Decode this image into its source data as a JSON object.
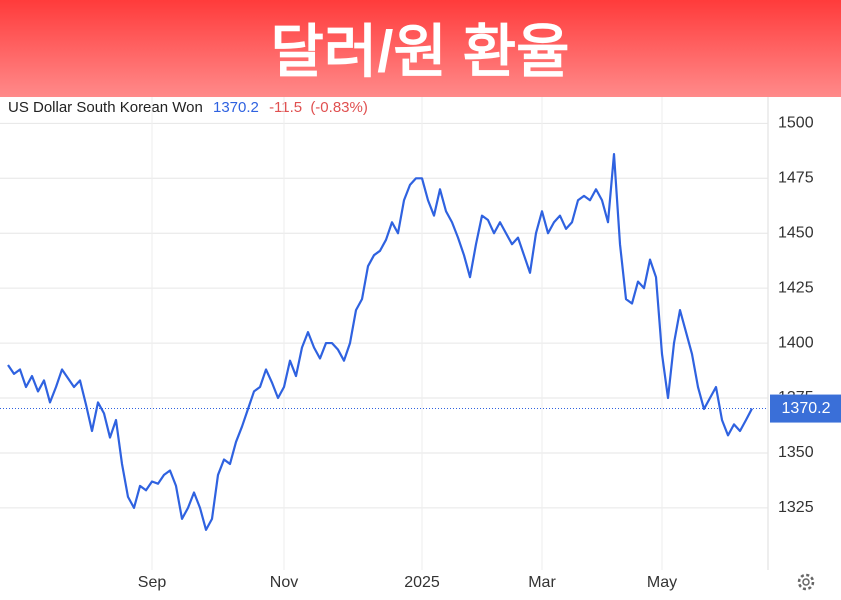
{
  "chart_data": {
    "type": "line",
    "title": "달러/원 환율",
    "subtitle": "US Dollar South Korean Won",
    "change": -11.5,
    "change_pct_label": "(-0.83%)",
    "categories": [
      null,
      null,
      null,
      null,
      null,
      null,
      null,
      null,
      null,
      null,
      null,
      null,
      null,
      null,
      null,
      null,
      null,
      null,
      null,
      null,
      null,
      null,
      null,
      null,
      "Sep",
      null,
      null,
      null,
      null,
      null,
      null,
      null,
      null,
      null,
      null,
      null,
      null,
      null,
      null,
      null,
      null,
      null,
      null,
      null,
      null,
      null,
      "Nov",
      null,
      null,
      null,
      null,
      null,
      null,
      null,
      null,
      null,
      null,
      null,
      null,
      null,
      null,
      null,
      null,
      null,
      null,
      null,
      null,
      null,
      null,
      "2025",
      null,
      null,
      null,
      null,
      null,
      null,
      null,
      null,
      null,
      null,
      null,
      null,
      null,
      null,
      null,
      null,
      null,
      null,
      null,
      "Mar",
      null,
      null,
      null,
      null,
      null,
      null,
      null,
      null,
      null,
      null,
      null,
      null,
      null,
      null,
      null,
      null,
      null,
      null,
      null,
      "May",
      null,
      null,
      null,
      null,
      null,
      null,
      null,
      null,
      null,
      null,
      null,
      null,
      null,
      null,
      null
    ],
    "series": [
      {
        "name": "US Dollar South Korean Won",
        "color": "#2f62e0",
        "values": [
          1390,
          1386,
          1388,
          1380,
          1385,
          1378,
          1383,
          1373,
          1380,
          1388,
          1384,
          1380,
          1383,
          1372,
          1360,
          1373,
          1368,
          1357,
          1365,
          1345,
          1330,
          1325,
          1335,
          1333,
          1337,
          1336,
          1340,
          1342,
          1335,
          1320,
          1325,
          1332,
          1325,
          1315,
          1320,
          1340,
          1347,
          1345,
          1355,
          1362,
          1370,
          1378,
          1380,
          1388,
          1382,
          1375,
          1380,
          1392,
          1385,
          1398,
          1405,
          1398,
          1393,
          1400,
          1400,
          1397,
          1392,
          1400,
          1415,
          1420,
          1435,
          1440,
          1442,
          1447,
          1455,
          1450,
          1465,
          1472,
          1475,
          1475,
          1465,
          1458,
          1470,
          1460,
          1455,
          1448,
          1440,
          1430,
          1445,
          1458,
          1456,
          1450,
          1455,
          1450,
          1445,
          1448,
          1440,
          1432,
          1450,
          1460,
          1450,
          1455,
          1458,
          1452,
          1455,
          1465,
          1467,
          1465,
          1470,
          1465,
          1455,
          1486,
          1445,
          1420,
          1418,
          1428,
          1425,
          1438,
          1430,
          1395,
          1375,
          1400,
          1415,
          1405,
          1395,
          1380,
          1370,
          1375,
          1380,
          1365,
          1358,
          1363,
          1360,
          1365,
          1370.2
        ]
      }
    ],
    "ylim": [
      1299,
      1512
    ],
    "yticks": [
      1325,
      1350,
      1375,
      1400,
      1425,
      1450,
      1475,
      1500
    ],
    "grid": true
  }
}
